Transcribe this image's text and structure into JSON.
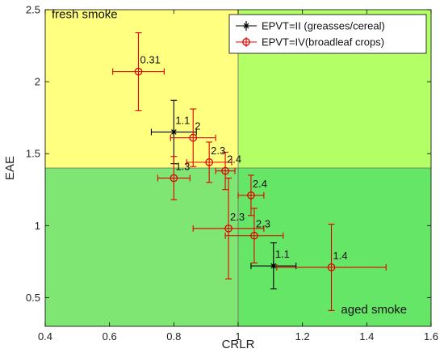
{
  "chart_data": {
    "type": "scatter",
    "xlabel": "CRLR",
    "ylabel": "EAE",
    "xlim": [
      0.4,
      1.6
    ],
    "ylim": [
      0.3,
      2.5
    ],
    "xticks": [
      "0.4",
      "0.6",
      "0.8",
      "1",
      "1.2",
      "1.4",
      "1.6"
    ],
    "yticks": [
      "0.5",
      "1",
      "1.5",
      "2",
      "2.5"
    ],
    "thresholds": {
      "x": 1.0,
      "y": 1.4
    },
    "regions": [
      {
        "name": "fresh-smoke",
        "x": [
          0.4,
          1.0
        ],
        "y": [
          1.4,
          2.5
        ],
        "color": "#ffff80"
      },
      {
        "name": "upper-right",
        "x": [
          1.0,
          1.6
        ],
        "y": [
          1.4,
          2.5
        ],
        "color": "#b3ff66"
      },
      {
        "name": "lower-left",
        "x": [
          0.4,
          1.0
        ],
        "y": [
          0.3,
          1.4
        ],
        "color": "#80e673"
      },
      {
        "name": "aged-smoke",
        "x": [
          1.0,
          1.6
        ],
        "y": [
          0.3,
          1.4
        ],
        "color": "#66e666"
      }
    ],
    "annotations": [
      {
        "name": "fresh-smoke-label",
        "text": "fresh smoke",
        "x": 0.42,
        "y": 2.44
      },
      {
        "name": "aged-smoke-label",
        "text": "aged smoke",
        "x": 1.525,
        "y": 0.39
      }
    ],
    "legend": {
      "placement": "top-right"
    },
    "series": [
      {
        "name": "EPVT=II (greasses/cereal)",
        "color": "#000000",
        "marker": "star",
        "points": [
          {
            "x": 0.8,
            "y": 1.65,
            "xerr": 0.07,
            "yerr": 0.22,
            "label": "1.1"
          },
          {
            "x": 1.11,
            "y": 0.72,
            "xerr": 0.07,
            "yerr": 0.16,
            "label": "1.1"
          }
        ]
      },
      {
        "name": "EPVT=IV(broadleaf crops)",
        "color": "#e00000",
        "marker": "circle",
        "points": [
          {
            "x": 0.69,
            "y": 2.07,
            "xerr": 0.08,
            "yerr": 0.27,
            "label": "0.31"
          },
          {
            "x": 0.86,
            "y": 1.61,
            "xerr": 0.07,
            "yerr": 0.2,
            "label": "2"
          },
          {
            "x": 0.91,
            "y": 1.44,
            "xerr": 0.07,
            "yerr": 0.14,
            "label": "2.3"
          },
          {
            "x": 0.96,
            "y": 1.38,
            "xerr": 0.03,
            "yerr": 0.13,
            "label": "2.4"
          },
          {
            "x": 0.8,
            "y": 1.33,
            "xerr": 0.05,
            "yerr": 0.15,
            "label": "1.3"
          },
          {
            "x": 1.04,
            "y": 1.21,
            "xerr": 0.04,
            "yerr": 0.14,
            "label": "2.4"
          },
          {
            "x": 0.97,
            "y": 0.98,
            "xerr": 0.11,
            "yerr": 0.35,
            "label": "2.3"
          },
          {
            "x": 1.05,
            "y": 0.93,
            "xerr": 0.09,
            "yerr": 0.19,
            "label": "2.3"
          },
          {
            "x": 1.29,
            "y": 0.71,
            "xerr": 0.17,
            "yerr": 0.3,
            "label": "1.4"
          }
        ]
      }
    ]
  }
}
